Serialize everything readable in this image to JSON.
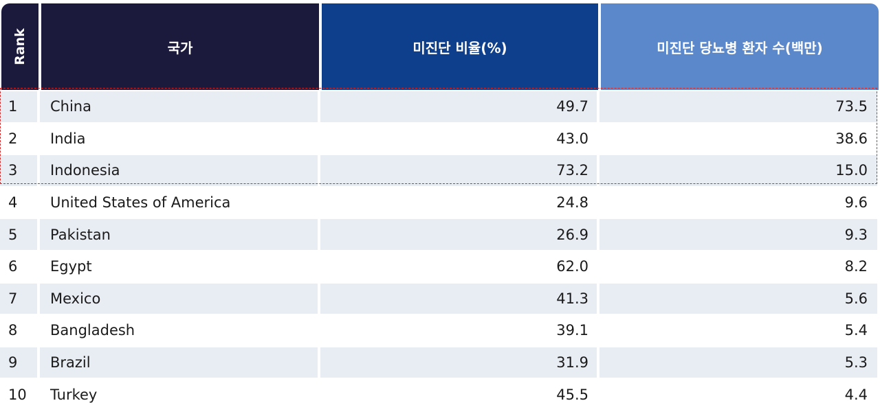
{
  "headers": {
    "rank": "Rank",
    "country": "국가",
    "ratio": "미진단 비율(%)",
    "count": "미진단 당뇨병 환자 수(백만)"
  },
  "chart_data": {
    "type": "table",
    "columns": [
      "Rank",
      "국가",
      "미진단 비율(%)",
      "미진단 당뇨병 환자 수(백만)"
    ],
    "rows": [
      {
        "rank": "1",
        "country": "China",
        "ratio": "49.7",
        "count": "73.5"
      },
      {
        "rank": "2",
        "country": "India",
        "ratio": "43.0",
        "count": "38.6"
      },
      {
        "rank": "3",
        "country": "Indonesia",
        "ratio": "73.2",
        "count": "15.0"
      },
      {
        "rank": "4",
        "country": "United States of America",
        "ratio": "24.8",
        "count": "9.6"
      },
      {
        "rank": "5",
        "country": "Pakistan",
        "ratio": "26.9",
        "count": "9.3"
      },
      {
        "rank": "6",
        "country": "Egypt",
        "ratio": "62.0",
        "count": "8.2"
      },
      {
        "rank": "7",
        "country": "Mexico",
        "ratio": "41.3",
        "count": "5.6"
      },
      {
        "rank": "8",
        "country": "Bangladesh",
        "ratio": "39.1",
        "count": "5.4"
      },
      {
        "rank": "9",
        "country": "Brazil",
        "ratio": "31.9",
        "count": "5.3"
      },
      {
        "rank": "10",
        "country": "Turkey",
        "ratio": "45.5",
        "count": "4.4"
      }
    ],
    "highlighted_rows": [
      1,
      2,
      3
    ],
    "colors": {
      "header_dark": "#1c1a3c",
      "header_mid": "#0e3f8c",
      "header_light": "#5b88cb",
      "row_shade": "#e8ecf3",
      "highlight_border": "#d42a2a"
    }
  }
}
